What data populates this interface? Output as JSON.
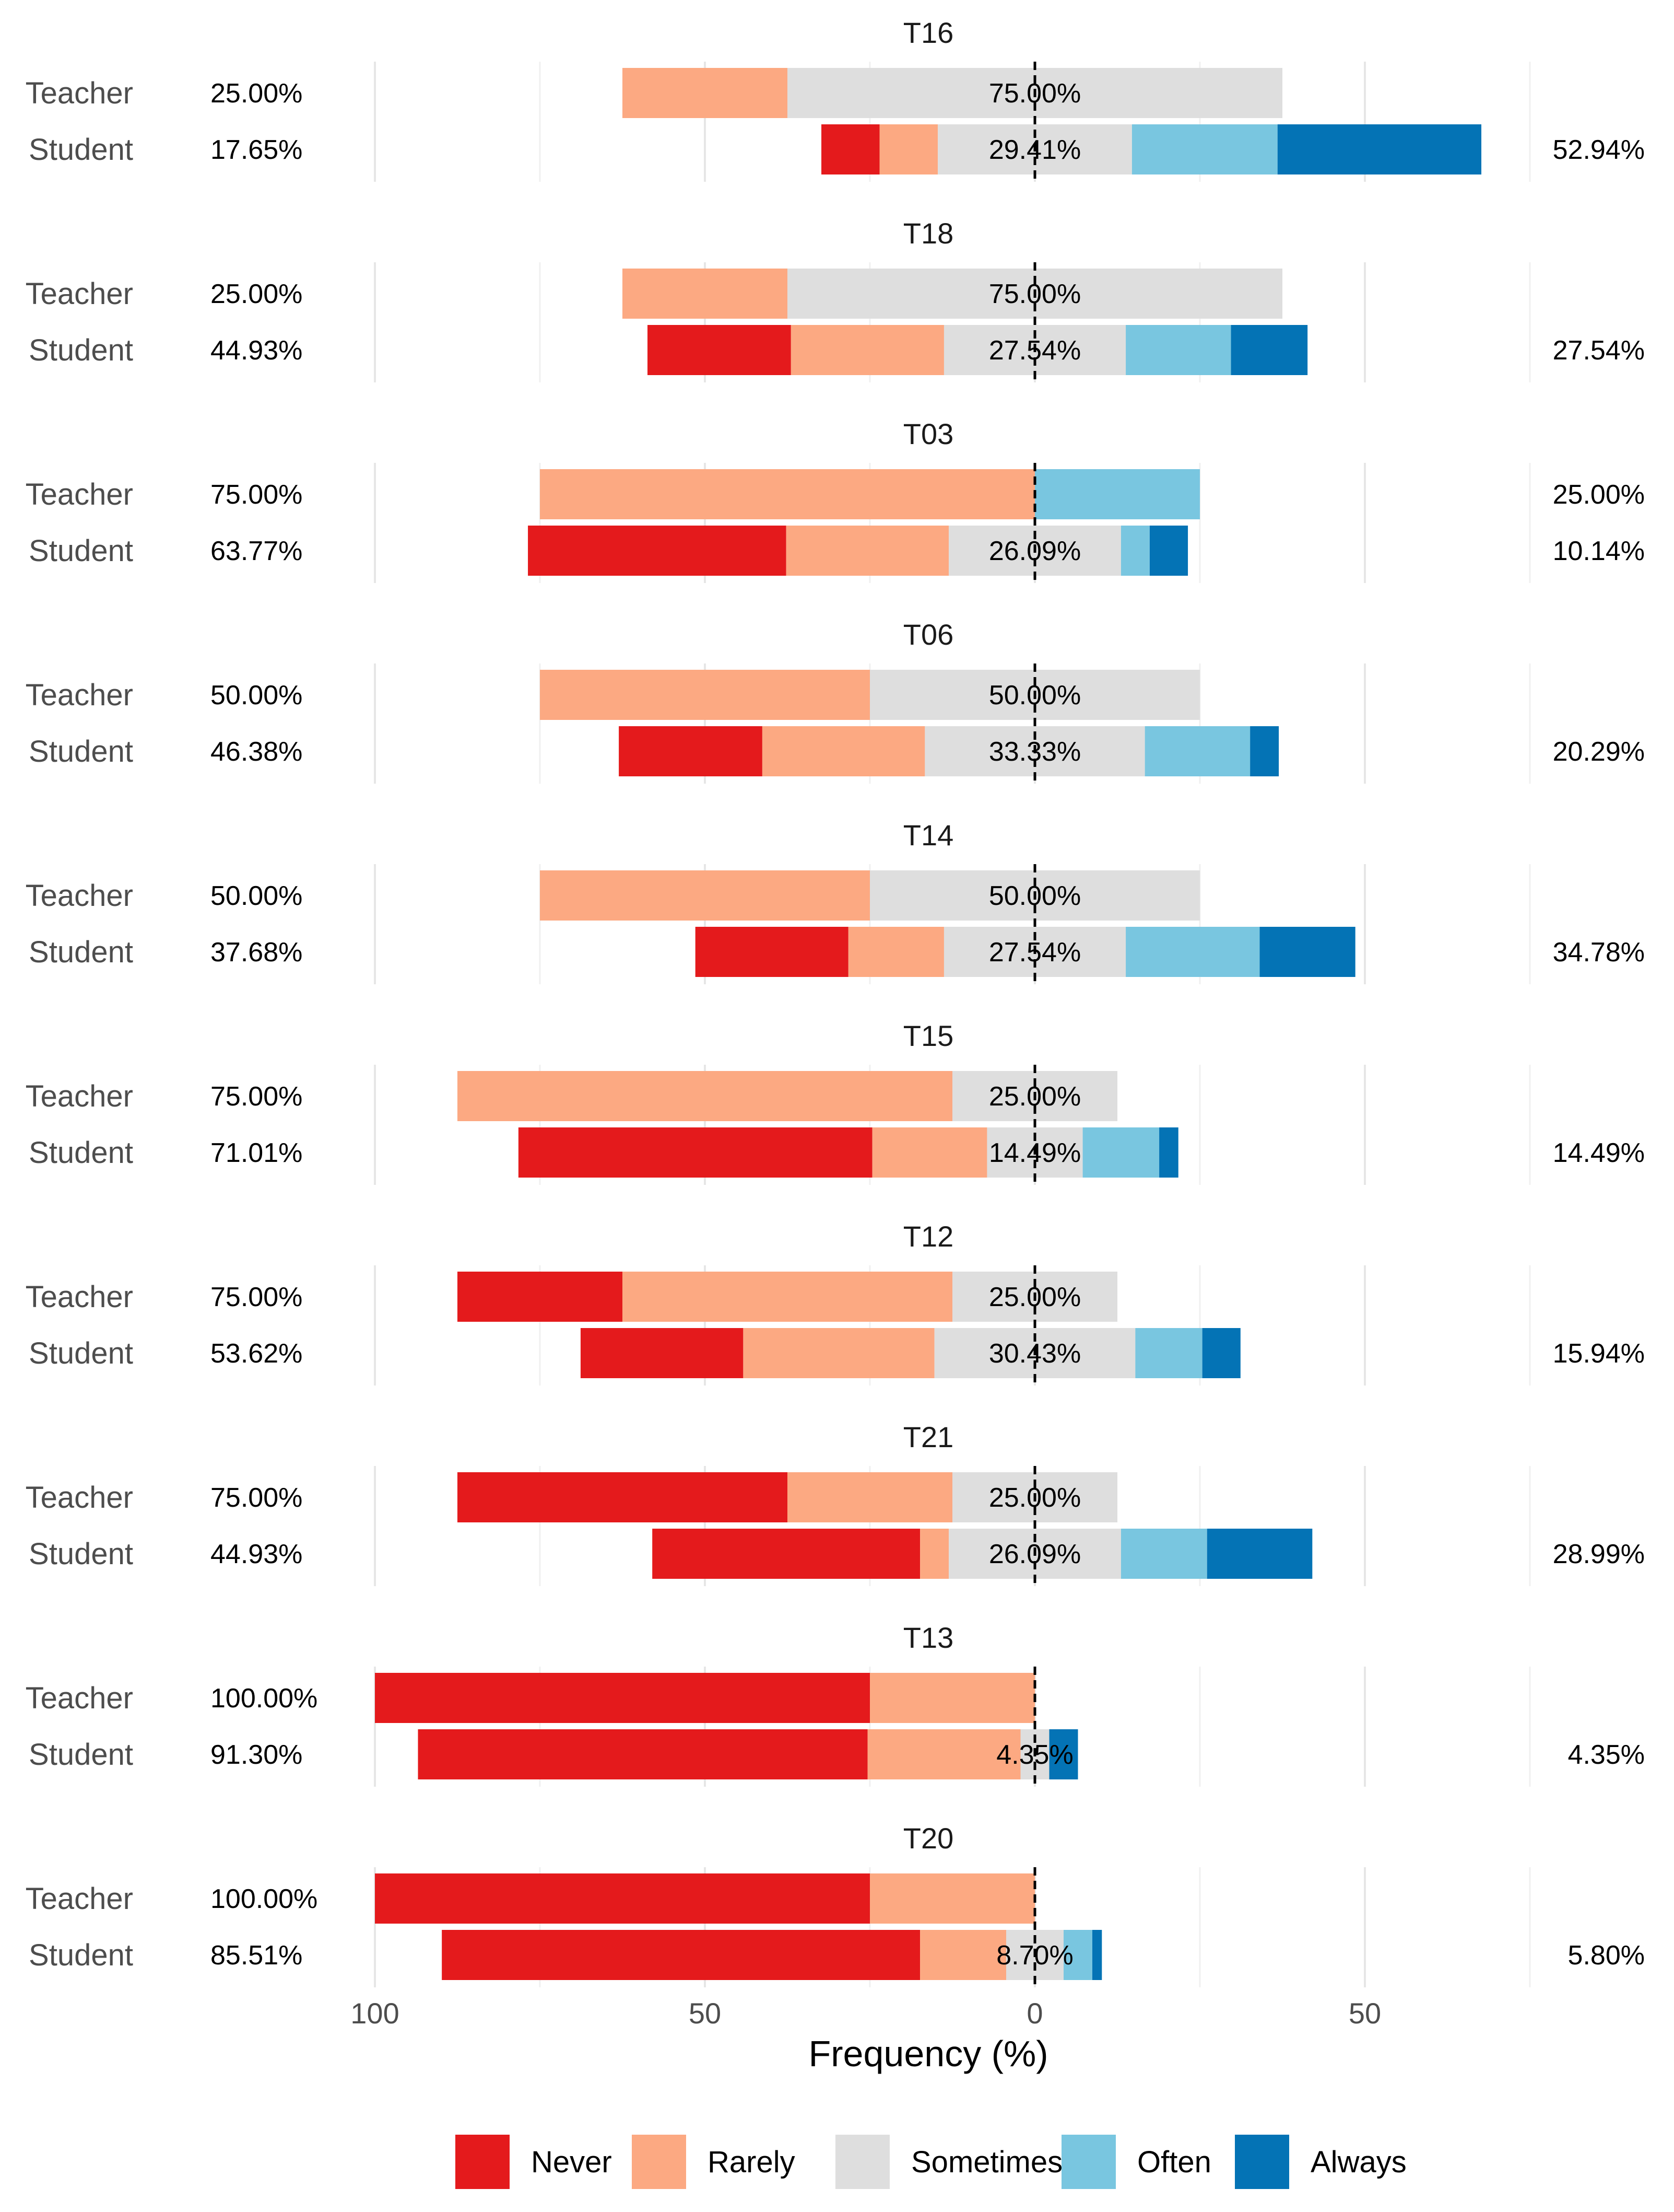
{
  "chart_data": {
    "type": "diverging-stacked-bar",
    "xlabel": "Frequency (%)",
    "xlim": [
      -100,
      75
    ],
    "x_ticks": [
      {
        "value": -100,
        "label": "100"
      },
      {
        "value": -50,
        "label": "50"
      },
      {
        "value": 0,
        "label": "0"
      },
      {
        "value": 50,
        "label": "50"
      }
    ],
    "levels": [
      "Never",
      "Rarely",
      "Sometimes",
      "Often",
      "Always"
    ],
    "colors": {
      "Never": "#E41A1C",
      "Rarely": "#FCA982",
      "Sometimes": "#DEDEDE",
      "Often": "#79C6E0",
      "Always": "#0473B5"
    },
    "panels": [
      {
        "title": "T16",
        "rows": [
          {
            "group": "Teacher",
            "never": 0,
            "rarely": 25,
            "sometimes": 75,
            "often": 0,
            "always": 0,
            "low_label": "25.00%",
            "mid_label": "75.00%",
            "high_label": ""
          },
          {
            "group": "Student",
            "never": 8.82,
            "rarely": 8.83,
            "sometimes": 29.41,
            "often": 22.06,
            "always": 30.88,
            "low_label": "17.65%",
            "mid_label": "29.41%",
            "high_label": "52.94%"
          }
        ]
      },
      {
        "title": "T18",
        "rows": [
          {
            "group": "Teacher",
            "never": 0,
            "rarely": 25,
            "sometimes": 75,
            "often": 0,
            "always": 0,
            "low_label": "25.00%",
            "mid_label": "75.00%",
            "high_label": ""
          },
          {
            "group": "Student",
            "never": 21.74,
            "rarely": 23.19,
            "sometimes": 27.54,
            "often": 15.94,
            "always": 11.6,
            "low_label": "44.93%",
            "mid_label": "27.54%",
            "high_label": "27.54%"
          }
        ]
      },
      {
        "title": "T03",
        "rows": [
          {
            "group": "Teacher",
            "never": 0,
            "rarely": 75,
            "sometimes": 0,
            "often": 25,
            "always": 0,
            "low_label": "75.00%",
            "mid_label": "",
            "high_label": "25.00%"
          },
          {
            "group": "Student",
            "never": 39.13,
            "rarely": 24.64,
            "sometimes": 26.09,
            "often": 4.35,
            "always": 5.79,
            "low_label": "63.77%",
            "mid_label": "26.09%",
            "high_label": "10.14%"
          }
        ]
      },
      {
        "title": "T06",
        "rows": [
          {
            "group": "Teacher",
            "never": 0,
            "rarely": 50,
            "sometimes": 50,
            "often": 0,
            "always": 0,
            "low_label": "50.00%",
            "mid_label": "50.00%",
            "high_label": ""
          },
          {
            "group": "Student",
            "never": 21.74,
            "rarely": 24.64,
            "sometimes": 33.33,
            "often": 15.94,
            "always": 4.35,
            "low_label": "46.38%",
            "mid_label": "33.33%",
            "high_label": "20.29%"
          }
        ]
      },
      {
        "title": "T14",
        "rows": [
          {
            "group": "Teacher",
            "never": 0,
            "rarely": 50,
            "sometimes": 50,
            "often": 0,
            "always": 0,
            "low_label": "50.00%",
            "mid_label": "50.00%",
            "high_label": ""
          },
          {
            "group": "Student",
            "never": 23.19,
            "rarely": 14.49,
            "sometimes": 27.54,
            "often": 20.29,
            "always": 14.49,
            "low_label": "37.68%",
            "mid_label": "27.54%",
            "high_label": "34.78%"
          }
        ]
      },
      {
        "title": "T15",
        "rows": [
          {
            "group": "Teacher",
            "never": 0,
            "rarely": 75,
            "sometimes": 25,
            "often": 0,
            "always": 0,
            "low_label": "75.00%",
            "mid_label": "25.00%",
            "high_label": ""
          },
          {
            "group": "Student",
            "never": 53.62,
            "rarely": 17.39,
            "sometimes": 14.49,
            "often": 11.59,
            "always": 2.9,
            "low_label": "71.01%",
            "mid_label": "14.49%",
            "high_label": "14.49%"
          }
        ]
      },
      {
        "title": "T12",
        "rows": [
          {
            "group": "Teacher",
            "never": 25,
            "rarely": 50,
            "sometimes": 25,
            "often": 0,
            "always": 0,
            "low_label": "75.00%",
            "mid_label": "25.00%",
            "high_label": ""
          },
          {
            "group": "Student",
            "never": 24.64,
            "rarely": 28.98,
            "sometimes": 30.43,
            "often": 10.15,
            "always": 5.79,
            "low_label": "53.62%",
            "mid_label": "30.43%",
            "high_label": "15.94%"
          }
        ]
      },
      {
        "title": "T21",
        "rows": [
          {
            "group": "Teacher",
            "never": 50,
            "rarely": 25,
            "sometimes": 25,
            "often": 0,
            "always": 0,
            "low_label": "75.00%",
            "mid_label": "25.00%",
            "high_label": ""
          },
          {
            "group": "Student",
            "never": 40.58,
            "rarely": 4.35,
            "sometimes": 26.09,
            "often": 13.04,
            "always": 15.95,
            "low_label": "44.93%",
            "mid_label": "26.09%",
            "high_label": "28.99%"
          }
        ]
      },
      {
        "title": "T13",
        "rows": [
          {
            "group": "Teacher",
            "never": 75,
            "rarely": 25,
            "sometimes": 0,
            "often": 0,
            "always": 0,
            "low_label": "100.00%",
            "mid_label": "",
            "high_label": ""
          },
          {
            "group": "Student",
            "never": 68.12,
            "rarely": 23.18,
            "sometimes": 4.35,
            "often": 0,
            "always": 4.35,
            "low_label": "91.30%",
            "mid_label": "4.35%",
            "high_label": "4.35%"
          }
        ]
      },
      {
        "title": "T20",
        "rows": [
          {
            "group": "Teacher",
            "never": 75,
            "rarely": 25,
            "sometimes": 0,
            "often": 0,
            "always": 0,
            "low_label": "100.00%",
            "mid_label": "",
            "high_label": ""
          },
          {
            "group": "Student",
            "never": 72.46,
            "rarely": 13.05,
            "sometimes": 8.7,
            "often": 4.35,
            "always": 1.45,
            "low_label": "85.51%",
            "mid_label": "8.70%",
            "high_label": "5.80%"
          }
        ]
      }
    ]
  }
}
